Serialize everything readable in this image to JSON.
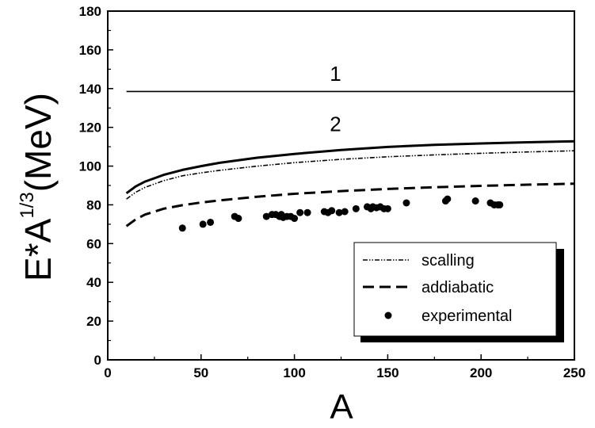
{
  "chart_data": {
    "type": "line",
    "xlabel": "A",
    "ylabel": {
      "base": "E*A",
      "superscript": "1/3",
      "unit": "(MeV)"
    },
    "xlim": [
      0,
      250
    ],
    "ylim": [
      0,
      180
    ],
    "xticks": [
      "0",
      "50",
      "100",
      "150",
      "200",
      "250"
    ],
    "yticks": [
      "0",
      "20",
      "40",
      "60",
      "80",
      "100",
      "120",
      "140",
      "160",
      "180"
    ],
    "grid": false,
    "legend_position": "bottom-right",
    "annotations": [
      {
        "text": "1",
        "x": 122,
        "y": 144
      },
      {
        "text": "2",
        "x": 122,
        "y": 118
      }
    ],
    "series": [
      {
        "key": "curve1",
        "style": "solid-thin",
        "x": [
          10,
          250
        ],
        "y": [
          138.5,
          138.5
        ]
      },
      {
        "key": "curve2",
        "style": "solid-thick",
        "x": [
          10,
          15,
          20,
          30,
          40,
          50,
          60,
          80,
          100,
          125,
          150,
          175,
          200,
          225,
          250
        ],
        "y": [
          86,
          89.5,
          92,
          95.5,
          98,
          100,
          101.7,
          104.3,
          106.3,
          108.3,
          109.9,
          111.0,
          111.7,
          112.3,
          112.8
        ]
      },
      {
        "key": "scaling",
        "name": "scalling",
        "style": "dash-dot-dot",
        "x": [
          10,
          15,
          20,
          30,
          40,
          50,
          60,
          80,
          100,
          125,
          150,
          175,
          200,
          225,
          250
        ],
        "y": [
          83,
          86.5,
          89,
          92.5,
          95,
          96.5,
          97.8,
          100,
          101.8,
          103.5,
          104.8,
          105.8,
          106.6,
          107.3,
          107.9
        ]
      },
      {
        "key": "adiabatic",
        "name": "addiabatic",
        "style": "dashed",
        "x": [
          10,
          15,
          20,
          30,
          40,
          50,
          60,
          80,
          100,
          125,
          150,
          175,
          200,
          225,
          250
        ],
        "y": [
          69,
          72.5,
          75,
          78,
          79.8,
          81.2,
          82.3,
          84.2,
          85.7,
          87.1,
          88.2,
          89.1,
          89.8,
          90.4,
          90.9
        ]
      },
      {
        "key": "experimental",
        "name": "experimental",
        "style": "markers",
        "x": [
          40,
          51,
          55,
          68,
          70,
          85,
          88,
          90,
          92,
          93,
          94,
          96,
          98,
          100,
          103,
          107,
          116,
          118,
          120,
          124,
          127,
          133,
          139,
          141,
          142,
          144,
          146,
          148,
          150,
          160,
          181,
          182,
          197,
          205,
          207,
          209,
          210
        ],
        "y": [
          68,
          70,
          71,
          74,
          73,
          74,
          75,
          75,
          74,
          75,
          73.5,
          74,
          74,
          73,
          76,
          76,
          76.5,
          76,
          77,
          76,
          76.5,
          78,
          79,
          78,
          79,
          78.5,
          79,
          78,
          78,
          81,
          82,
          83,
          82,
          81,
          80,
          80,
          80
        ]
      }
    ]
  }
}
